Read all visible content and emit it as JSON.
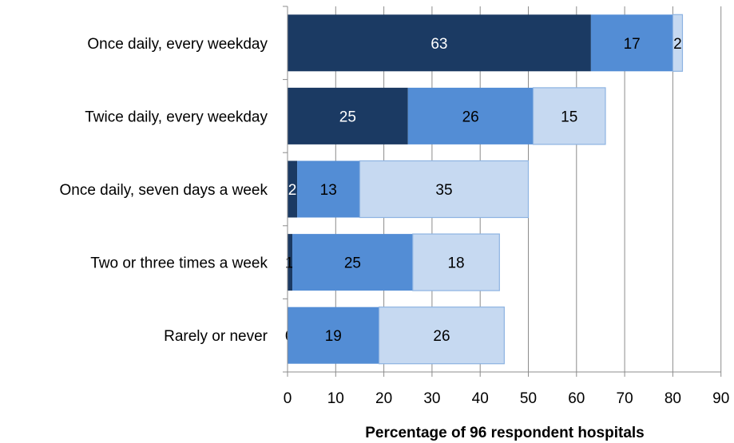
{
  "chart_data": {
    "type": "bar",
    "orientation": "horizontal",
    "stacked": true,
    "categories": [
      "Once daily, every weekday",
      "Twice daily, every weekday",
      "Once daily, seven days a week",
      "Two or three times a week",
      "Rarely or never"
    ],
    "series": [
      {
        "values": [
          63,
          25,
          2,
          1,
          0
        ],
        "color": "#1b3a63",
        "label_color": "#ffffff"
      },
      {
        "values": [
          17,
          26,
          13,
          25,
          19
        ],
        "color": "#538dd5",
        "label_color": "#000000"
      },
      {
        "values": [
          2,
          15,
          35,
          18,
          26
        ],
        "color": "#c6d9f1",
        "label_color": "#000000"
      }
    ],
    "xlabel": "Percentage of 96 respondent hospitals",
    "xlim": [
      0,
      90
    ],
    "xticks": [
      "0",
      "10",
      "20",
      "30",
      "40",
      "50",
      "60",
      "70",
      "80",
      "90"
    ],
    "grid": "vertical",
    "legend": "none"
  }
}
